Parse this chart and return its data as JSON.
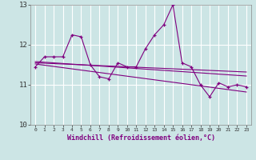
{
  "xlabel": "Windchill (Refroidissement éolien,°C)",
  "bg_color": "#cce5e5",
  "line_color": "#800080",
  "xlim": [
    -0.5,
    23.5
  ],
  "ylim": [
    10,
    13
  ],
  "yticks": [
    10,
    11,
    12,
    13
  ],
  "xticks": [
    0,
    1,
    2,
    3,
    4,
    5,
    6,
    7,
    8,
    9,
    10,
    11,
    12,
    13,
    14,
    15,
    16,
    17,
    18,
    19,
    20,
    21,
    22,
    23
  ],
  "main_data": {
    "x": [
      0,
      1,
      2,
      3,
      4,
      5,
      6,
      7,
      8,
      9,
      10,
      11,
      12,
      13,
      14,
      15,
      16,
      17,
      18,
      19,
      20,
      21,
      22,
      23
    ],
    "y": [
      11.45,
      11.7,
      11.7,
      11.7,
      12.25,
      12.2,
      11.5,
      11.2,
      11.15,
      11.55,
      11.45,
      11.45,
      11.9,
      12.25,
      12.5,
      13.0,
      11.55,
      11.45,
      11.0,
      10.7,
      11.05,
      10.95,
      11.0,
      10.95
    ]
  },
  "trend1": {
    "x": [
      0,
      23
    ],
    "y": [
      11.58,
      11.22
    ]
  },
  "trend2": {
    "x": [
      0,
      23
    ],
    "y": [
      11.52,
      10.82
    ]
  },
  "trend3": {
    "x": [
      0,
      23
    ],
    "y": [
      11.55,
      11.32
    ]
  }
}
